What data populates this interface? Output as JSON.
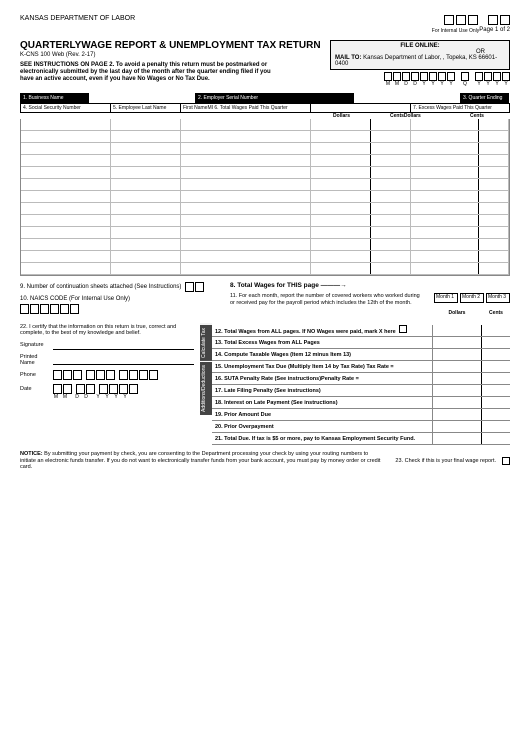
{
  "header": {
    "department": "KANSAS DEPARTMENT OF LABOR",
    "page": "Page 1 of 2",
    "internal_use": "For Internal Use Only",
    "title": "QUARTERLYWAGE REPORT & UNEMPLOYMENT TAX RETURN",
    "form_id": "K-CNS 100 Web (Rev. 2-17)",
    "file_online": "FILE ONLINE:",
    "or": "OR",
    "mail_to_label": "MAIL TO:",
    "mail_to": "Kansas Department of Labor, , Topeka, KS 66601-0400",
    "instructions": "SEE INSTRUCTIONS ON PAGE 2. To avoid a penalty this return must be postmarked or electronically submitted by the last day of the month after the quarter ending  filed if you have an active account, even if you have No Wages or No Tax Due.",
    "date_labels": [
      "M",
      "M",
      "D",
      "D",
      "Y",
      "Y",
      "Y",
      "Y",
      "",
      "Q",
      "",
      "Y",
      "Y",
      "Y",
      "Y"
    ]
  },
  "blackbar": {
    "s1": "1. Business Name",
    "s2": "2. Employer Serial Number",
    "s3": "3. Quarter Ending"
  },
  "table": {
    "c1": "4. Social Security Number",
    "c2": "5. Employee Last Name",
    "c3": "First NameMI 6. Total Wages Paid This Quarter",
    "c5": "7. Excess Wages Paid This Quarter",
    "dollars": "Dollars",
    "cents": "Cents",
    "centsdollars": "CentsDollars",
    "row_count": 13
  },
  "mid": {
    "item9": "9. Number of continuation sheets attached (See Instructions)",
    "item10": "10. NAICS CODE (For Internal Use Only)",
    "total_wages_page": "8. Total Wages for THIS page",
    "item11": "11. For each month, report the number of covered workers who worked during or received pay for the payroll period which includes the 12th of the month.",
    "month1": "Month 1",
    "month2": "Month 2",
    "month3": "Month 3"
  },
  "cert": {
    "text": "22. I certify that the information on this return is true, correct and complete, to the best of my knowledge and belief.",
    "signature": "Signature",
    "printed": "Printed Name",
    "phone": "Phone",
    "date": "Date",
    "date_labels": [
      "M",
      "M",
      "D",
      "D",
      "Y",
      "Y",
      "Y",
      "Y"
    ]
  },
  "tabs": {
    "t1": "Calculate Tax",
    "t2": "Additions/Deductions"
  },
  "calc": {
    "dollars": "Dollars",
    "cents": "Cents",
    "r12": "12. Total Wages from ALL pages. If NO Wages were paid, mark X here",
    "r13": "13. Total Excess Wages from ALL Pages",
    "r14": "14. Compute Taxable Wages (Item 12 minus Item 13)",
    "r15": "15. Unemployment Tax Due (Multiply Item 14 by Tax Rate) Tax Rate =",
    "r16": "16. SUTA Penalty Rate (See instructions)Penalty Rate =",
    "r17": "17. Late Filing Penalty (See instructions)",
    "r18": "18. Interest on Late Payment (See instructions)",
    "r19": "19. Prior Amount Due",
    "r20": "20. Prior Overpayment",
    "r21": "21. Total Due. If tax is $5 or more, pay to Kansas Employment Security Fund."
  },
  "notice": {
    "label": "NOTICE:",
    "text": "By submitting your payment by check, you are consenting to the Department processing your check by using your routing numbers to initiate an electronic funds transfer. If you do not want to electronically transfer funds from your bank account, you must pay by money order or credit card.",
    "final": "23. Check if this is your final wage report."
  },
  "colors": {
    "black": "#000000",
    "grey_bg": "#f2f2f2",
    "grid": "#bbbbbb",
    "tab": "#444444"
  }
}
